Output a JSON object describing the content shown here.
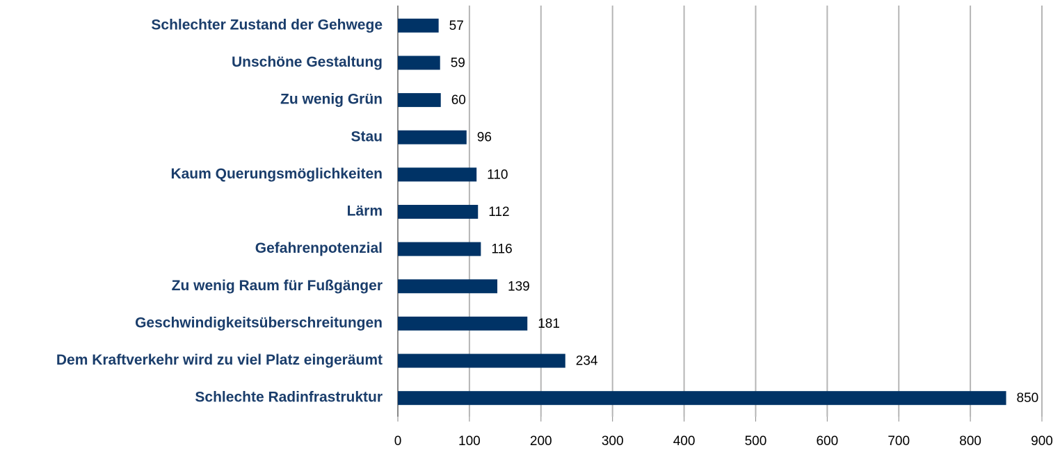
{
  "chart_data": {
    "type": "bar",
    "categories": [
      "Schlechter Zustand der Gehwege",
      "Unschöne Gestaltung",
      "Zu wenig Grün",
      "Stau",
      "Kaum Querungsmöglichkeiten",
      "Lärm",
      "Gefahrenpotenzial",
      "Zu wenig Raum für Fußgänger",
      "Geschwindigkeitsüberschreitungen",
      "Dem Kraftverkehr wird zu viel Platz eingeräumt",
      "Schlechte Radinfrastruktur"
    ],
    "values": [
      57,
      59,
      60,
      96,
      110,
      112,
      116,
      139,
      181,
      234,
      850
    ],
    "color": "#003366",
    "xlim": [
      0,
      900
    ],
    "xticks": [
      0,
      100,
      200,
      300,
      400,
      500,
      600,
      700,
      800,
      900
    ],
    "grid": true
  }
}
